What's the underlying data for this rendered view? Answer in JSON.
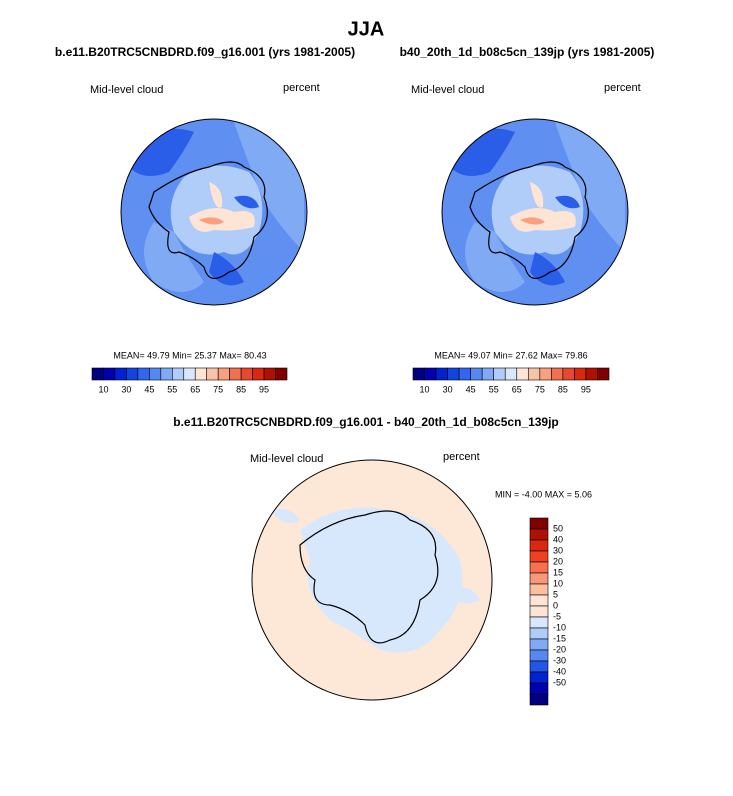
{
  "title": "JJA",
  "panels": [
    {
      "subtitle": "b.e11.B20TRC5CNBDRD.f09_g16.001 (yrs 1981-2005)",
      "left_label": "Mid-level cloud",
      "right_label": "percent",
      "stats": "MEAN=  49.79  Min=  25.37  Max=  80.43"
    },
    {
      "subtitle": "b40_20th_1d_b08c5cn_139jp (yrs 1981-2005)",
      "left_label": "Mid-level cloud",
      "right_label": "percent",
      "stats": "MEAN=  49.07  Min=  27.62  Max=  79.86"
    }
  ],
  "colorbar": {
    "colors": [
      "#000080",
      "#0000b0",
      "#0022d0",
      "#1144e0",
      "#3366f0",
      "#5588f0",
      "#80aaf4",
      "#b0ccf8",
      "#d8e8fc",
      "#fde4d4",
      "#f8c4a8",
      "#f8a080",
      "#f07050",
      "#e84830",
      "#d82810",
      "#b01000",
      "#800000"
    ],
    "labels": [
      10,
      30,
      45,
      55,
      65,
      75,
      85,
      95
    ]
  },
  "difference": {
    "subtitle": "b.e11.B20TRC5CNBDRD.f09_g16.001 - b40_20th_1d_b08c5cn_139jp",
    "left_label": "Mid-level cloud",
    "right_label": "percent",
    "stats": "MIN =  -4.00 MAX =   5.06",
    "colorbar": {
      "colors": [
        "#800000",
        "#b01000",
        "#d82810",
        "#f04020",
        "#f87050",
        "#f89878",
        "#fcc0a0",
        "#fde4d4",
        "#fde4d4",
        "#d8e8fc",
        "#b0ccf8",
        "#80aaf4",
        "#5588f0",
        "#2255e8",
        "#0022d0",
        "#0000b0",
        "#000080"
      ],
      "labels": [
        50,
        40,
        30,
        20,
        15,
        10,
        5,
        0,
        -5,
        -10,
        -15,
        -20,
        -30,
        -40,
        -50
      ]
    }
  }
}
